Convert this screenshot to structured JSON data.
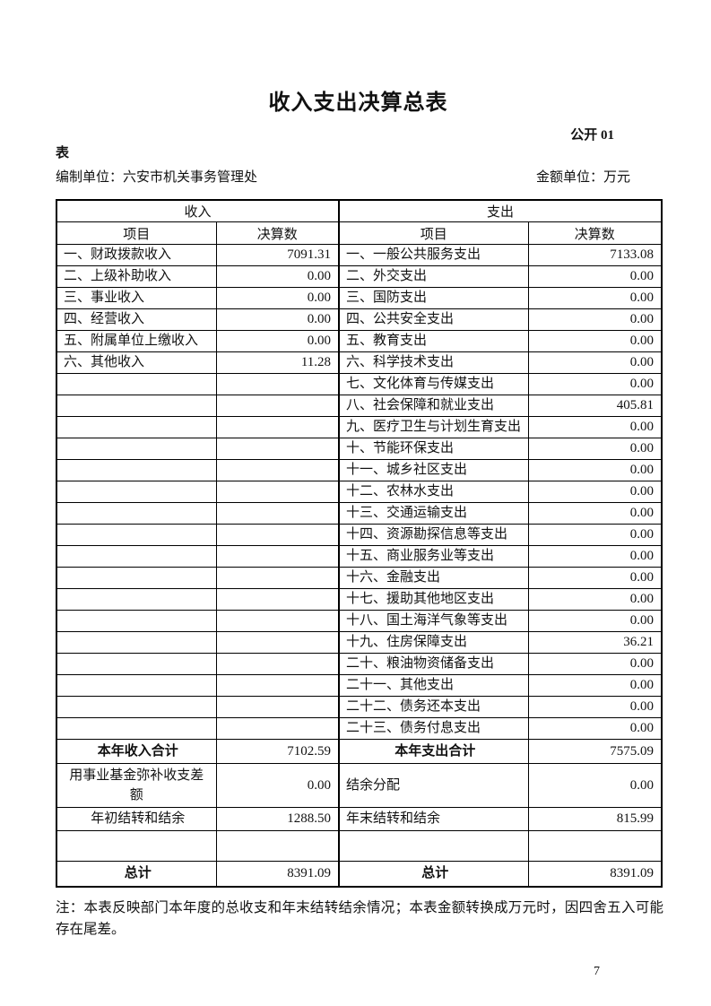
{
  "page": {
    "title": "收入支出决算总表",
    "doc_code": "公开 01",
    "table_word": "表",
    "prepared_by": "编制单位：六安市机关事务管理处",
    "unit_label": "金额单位：万元",
    "note": "注：本表反映部门本年度的总收支和年末结转结余情况；本表金额转换成万元时，因四舍五入可能存在尾差。",
    "page_number": "7"
  },
  "table": {
    "income_header": "收入",
    "expense_header": "支出",
    "item_header": "项目",
    "amount_header": "决算数",
    "rows": [
      {
        "income_item": "一、财政拨款收入",
        "income_amount": "7091.31",
        "expense_item": "一、一般公共服务支出",
        "expense_amount": "7133.08"
      },
      {
        "income_item": "二、上级补助收入",
        "income_amount": "0.00",
        "expense_item": "二、外交支出",
        "expense_amount": "0.00"
      },
      {
        "income_item": "三、事业收入",
        "income_amount": "0.00",
        "expense_item": "三、国防支出",
        "expense_amount": "0.00"
      },
      {
        "income_item": "四、经营收入",
        "income_amount": "0.00",
        "expense_item": "四、公共安全支出",
        "expense_amount": "0.00"
      },
      {
        "income_item": "五、附属单位上缴收入",
        "income_amount": "0.00",
        "expense_item": "五、教育支出",
        "expense_amount": "0.00"
      },
      {
        "income_item": "六、其他收入",
        "income_amount": "11.28",
        "expense_item": "六、科学技术支出",
        "expense_amount": "0.00"
      },
      {
        "income_item": "",
        "income_amount": "",
        "expense_item": "七、文化体育与传媒支出",
        "expense_amount": "0.00"
      },
      {
        "income_item": "",
        "income_amount": "",
        "expense_item": "八、社会保障和就业支出",
        "expense_amount": "405.81"
      },
      {
        "income_item": "",
        "income_amount": "",
        "expense_item": "九、医疗卫生与计划生育支出",
        "expense_amount": "0.00"
      },
      {
        "income_item": "",
        "income_amount": "",
        "expense_item": "十、节能环保支出",
        "expense_amount": "0.00"
      },
      {
        "income_item": "",
        "income_amount": "",
        "expense_item": "十一、城乡社区支出",
        "expense_amount": "0.00"
      },
      {
        "income_item": "",
        "income_amount": "",
        "expense_item": "十二、农林水支出",
        "expense_amount": "0.00"
      },
      {
        "income_item": "",
        "income_amount": "",
        "expense_item": "十三、交通运输支出",
        "expense_amount": "0.00"
      },
      {
        "income_item": "",
        "income_amount": "",
        "expense_item": "十四、资源勘探信息等支出",
        "expense_amount": "0.00"
      },
      {
        "income_item": "",
        "income_amount": "",
        "expense_item": "十五、商业服务业等支出",
        "expense_amount": "0.00"
      },
      {
        "income_item": "",
        "income_amount": "",
        "expense_item": "十六、金融支出",
        "expense_amount": "0.00"
      },
      {
        "income_item": "",
        "income_amount": "",
        "expense_item": "十七、援助其他地区支出",
        "expense_amount": "0.00"
      },
      {
        "income_item": "",
        "income_amount": "",
        "expense_item": "十八、国土海洋气象等支出",
        "expense_amount": "0.00"
      },
      {
        "income_item": "",
        "income_amount": "",
        "expense_item": "十九、住房保障支出",
        "expense_amount": "36.21"
      },
      {
        "income_item": "",
        "income_amount": "",
        "expense_item": "二十、粮油物资储备支出",
        "expense_amount": "0.00"
      },
      {
        "income_item": "",
        "income_amount": "",
        "expense_item": "二十一、其他支出",
        "expense_amount": "0.00"
      },
      {
        "income_item": "",
        "income_amount": "",
        "expense_item": "二十二、债务还本支出",
        "expense_amount": "0.00"
      },
      {
        "income_item": "",
        "income_amount": "",
        "expense_item": "二十三、债务付息支出",
        "expense_amount": "0.00"
      }
    ],
    "summary_rows": [
      {
        "kind": "total",
        "income_item": "本年收入合计",
        "income_amount": "7102.59",
        "expense_item": "本年支出合计",
        "expense_amount": "7575.09"
      },
      {
        "kind": "fund",
        "income_item": "用事业基金弥补收支差额",
        "income_amount": "0.00",
        "expense_item": "结余分配",
        "expense_amount": "0.00"
      },
      {
        "kind": "carryover",
        "income_item": "年初结转和结余",
        "income_amount": "1288.50",
        "expense_item": "年末结转和结余",
        "expense_amount": "815.99"
      },
      {
        "kind": "spacer",
        "income_item": "",
        "income_amount": "",
        "expense_item": "",
        "expense_amount": ""
      },
      {
        "kind": "grand",
        "income_item": "总计",
        "income_amount": "8391.09",
        "expense_item": "总计",
        "expense_amount": "8391.09"
      }
    ]
  }
}
